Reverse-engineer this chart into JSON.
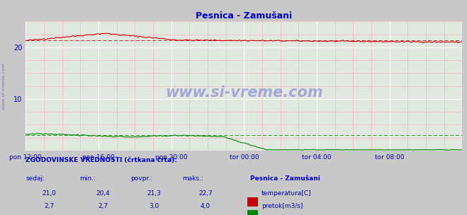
{
  "title": "Pesnica - Zamušani",
  "bg_color": "#c8c8c8",
  "plot_bg_color": "#e0e8e0",
  "grid_color_major": "#ffffff",
  "grid_color_minor": "#ffcccc",
  "title_color": "#0000cc",
  "tick_label_color": "#0000aa",
  "watermark_text": "www.si-vreme.com",
  "watermark_color": "#0000cc",
  "sidebar_text": "www.si-vreme.com",
  "xlim": [
    0,
    288
  ],
  "ylim": [
    0,
    25
  ],
  "yticks": [
    10,
    20
  ],
  "xtick_positions": [
    0,
    48,
    96,
    144,
    192,
    240
  ],
  "xtick_labels": [
    "pon 12:00",
    "pon 16:00",
    "pon 20:00",
    "tor 00:00",
    "tor 04:00",
    "tor 08:00"
  ],
  "temp_color": "#cc0000",
  "flow_color": "#008800",
  "legend_title": "Pesnica - Zamušani",
  "legend_temp": "temperatura[C]",
  "legend_flow": "pretok[m3/s]",
  "footer_label": "ZGODOVINSKE VREDNOSTI (črtkana črta):",
  "footer_headers": [
    "sedaj:",
    "min.:",
    "povpr.:",
    "maks.:"
  ],
  "footer_temp_values": [
    "21,0",
    "20,4",
    "21,3",
    "22,7"
  ],
  "footer_flow_values": [
    "2,7",
    "2,7",
    "3,0",
    "4,0"
  ],
  "temp_avg": 21.3,
  "temp_min": 20.4,
  "temp_max": 22.7,
  "temp_current": 21.0,
  "flow_avg": 3.0,
  "flow_min": 2.7,
  "flow_max": 4.0,
  "flow_current": 2.7
}
